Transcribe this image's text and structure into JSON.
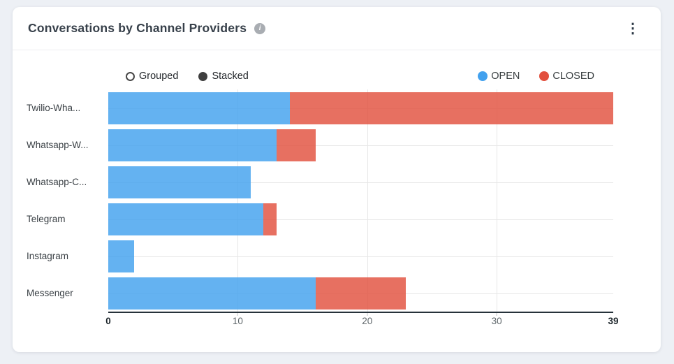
{
  "header": {
    "title": "Conversations by Channel Providers",
    "info_glyph": "i",
    "menu_glyph": "⋮"
  },
  "toolbar": {
    "mode_options": [
      {
        "label": "Grouped",
        "selected": false
      },
      {
        "label": "Stacked",
        "selected": true
      }
    ]
  },
  "chart_data": {
    "type": "bar",
    "orientation": "horizontal",
    "stacked": true,
    "title": "Conversations by Channel Providers",
    "categories": [
      "Twilio-Wha...",
      "Whatsapp-W...",
      "Whatsapp-C...",
      "Telegram",
      "Instagram",
      "Messenger"
    ],
    "series": [
      {
        "name": "OPEN",
        "color": "#42a1ee",
        "values": [
          14,
          13,
          11,
          12,
          2,
          16
        ]
      },
      {
        "name": "CLOSED",
        "color": "#e2503e",
        "values": [
          25,
          3,
          0,
          1,
          0,
          7
        ]
      }
    ],
    "totals": [
      39,
      16,
      11,
      13,
      2,
      23
    ],
    "xlim": [
      0,
      39
    ],
    "xticks": [
      0,
      10,
      20,
      30,
      39
    ],
    "gridlines_x": [
      10,
      20,
      30
    ],
    "grid": true,
    "legend_position": "top-right"
  },
  "colors": {
    "page_bg": "#edf0f5",
    "card_bg": "#ffffff",
    "axis_line": "#26323a",
    "gridline": "#e7e7e7",
    "open": "#42a1ee",
    "closed": "#e2503e"
  }
}
